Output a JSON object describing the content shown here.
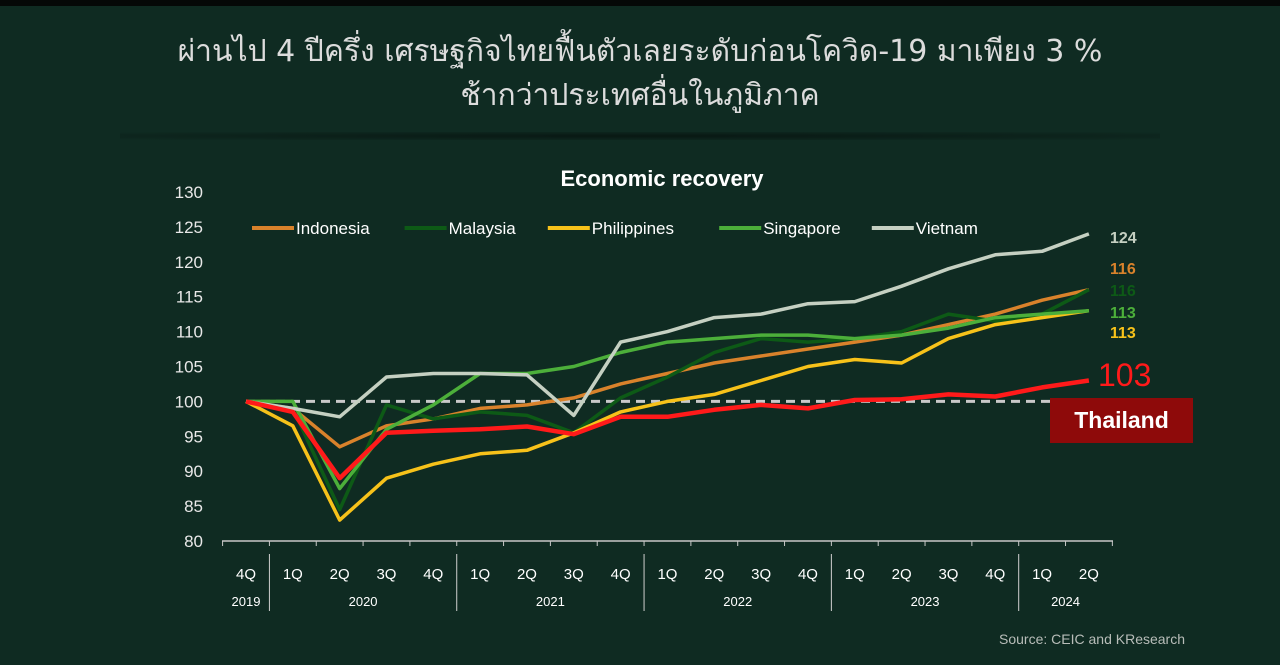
{
  "header": {
    "title_line1": "ผ่านไป 4 ปีครึ่ง เศรษฐกิจไทยฟื้นตัวเลยระดับก่อนโควิด-19  มาเพียง 3 %",
    "title_line2": "ช้ากว่าประเทศอื่นในภูมิภาค"
  },
  "source": "Source: CEIC and KResearch",
  "chart_data": {
    "type": "line",
    "title": "Economic recovery",
    "xlabel": "",
    "ylabel": "",
    "ylim": [
      80,
      130
    ],
    "yticks": [
      80,
      85,
      90,
      95,
      100,
      105,
      110,
      115,
      120,
      125,
      130
    ],
    "baseline": 100,
    "legend_position": "top",
    "categories": [
      "4Q",
      "1Q",
      "2Q",
      "3Q",
      "4Q",
      "1Q",
      "2Q",
      "3Q",
      "4Q",
      "1Q",
      "2Q",
      "3Q",
      "4Q",
      "1Q",
      "2Q",
      "3Q",
      "4Q",
      "1Q",
      "2Q"
    ],
    "year_groups": [
      {
        "label": "2019",
        "start": 0,
        "end": 0
      },
      {
        "label": "2020",
        "start": 1,
        "end": 4
      },
      {
        "label": "2021",
        "start": 5,
        "end": 8
      },
      {
        "label": "2022",
        "start": 9,
        "end": 12
      },
      {
        "label": "2023",
        "start": 13,
        "end": 16
      },
      {
        "label": "2024",
        "start": 17,
        "end": 18
      }
    ],
    "series": [
      {
        "name": "Indonesia",
        "color": "#d9822b",
        "in_legend": true,
        "end_label": "116",
        "values": [
          100,
          99,
          93.5,
          96.5,
          97.5,
          99,
          99.5,
          100.5,
          102.5,
          104,
          105.5,
          106.5,
          107.5,
          108.5,
          109.5,
          111,
          112.5,
          114.5,
          116
        ]
      },
      {
        "name": "Malaysia",
        "color": "#0d5a16",
        "in_legend": true,
        "end_label": "116",
        "values": [
          100,
          99,
          84.5,
          99.5,
          97.5,
          98.5,
          98,
          95.5,
          100.5,
          103.5,
          107,
          109,
          108.5,
          109,
          110,
          112.5,
          111.5,
          112.5,
          116
        ]
      },
      {
        "name": "Philippines",
        "color": "#f7c21a",
        "in_legend": true,
        "end_label": "113",
        "values": [
          100,
          96.5,
          83,
          89,
          91,
          92.5,
          93,
          95.5,
          98.5,
          100,
          101,
          103,
          105,
          106,
          105.5,
          109,
          111,
          112,
          113
        ]
      },
      {
        "name": "Singapore",
        "color": "#4caf3a",
        "in_legend": true,
        "end_label": "113",
        "values": [
          100,
          100,
          87.5,
          96,
          99.5,
          104,
          104,
          105,
          107,
          108.5,
          109,
          109.5,
          109.5,
          109,
          109.5,
          110.5,
          112,
          112.5,
          113
        ]
      },
      {
        "name": "Vietnam",
        "color": "#c5d0c2",
        "in_legend": true,
        "end_label": "124",
        "values": [
          100,
          99,
          97.8,
          103.5,
          104,
          104,
          103.8,
          98,
          108.5,
          110,
          112,
          112.5,
          114,
          114.3,
          116.5,
          119,
          121,
          121.5,
          124
        ]
      },
      {
        "name": "Thailand",
        "color": "#ff1a1a",
        "in_legend": false,
        "end_label": "103",
        "values": [
          100,
          98.5,
          89,
          95.5,
          95.8,
          96,
          96.4,
          95.3,
          97.8,
          97.8,
          98.8,
          99.5,
          99,
          100.2,
          100.3,
          101,
          100.7,
          102,
          103
        ]
      }
    ],
    "annotation": {
      "label": "Thailand",
      "color": "#8e0a0a"
    }
  }
}
